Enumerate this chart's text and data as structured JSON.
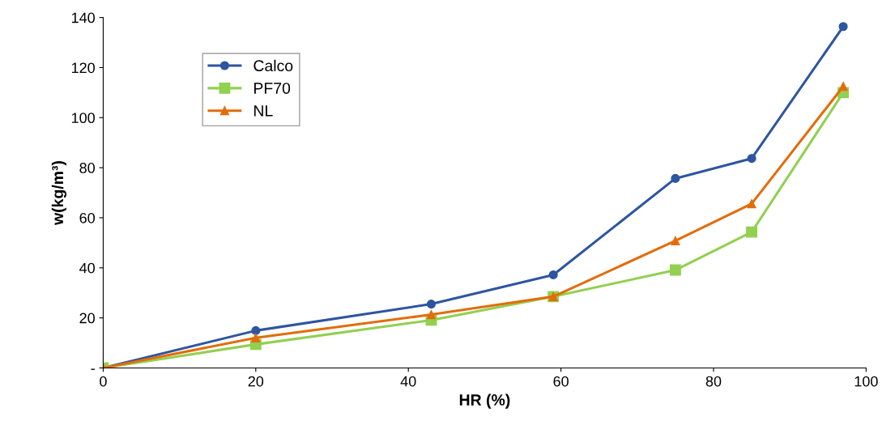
{
  "chart_data": {
    "type": "line",
    "xlabel": "HR (%)",
    "ylabel": "w(kg/m³)",
    "x": [
      0,
      20,
      43,
      59,
      75,
      85,
      97
    ],
    "series": [
      {
        "name": "Calco",
        "color": "#2e55a0",
        "marker": "circle",
        "values": [
          0,
          14.9,
          25.5,
          37.2,
          75.7,
          83.7,
          136.4
        ]
      },
      {
        "name": "PF70",
        "color": "#92d050",
        "marker": "square",
        "values": [
          0,
          9.4,
          19.1,
          28.5,
          39.1,
          54.3,
          110
        ]
      },
      {
        "name": "NL",
        "color": "#e36c0a",
        "marker": "triangle",
        "values": [
          0,
          12,
          21.3,
          28.5,
          50.8,
          65.6,
          112.5
        ]
      }
    ],
    "xlim": [
      0,
      100
    ],
    "xticks": [
      0,
      20,
      40,
      60,
      80,
      100
    ],
    "ylim": [
      0,
      140
    ],
    "yticks": [
      {
        "value": 0,
        "label": "-"
      },
      20,
      40,
      60,
      80,
      100,
      120,
      140
    ],
    "grid": false,
    "legend": "top left",
    "line_style": "solid"
  }
}
